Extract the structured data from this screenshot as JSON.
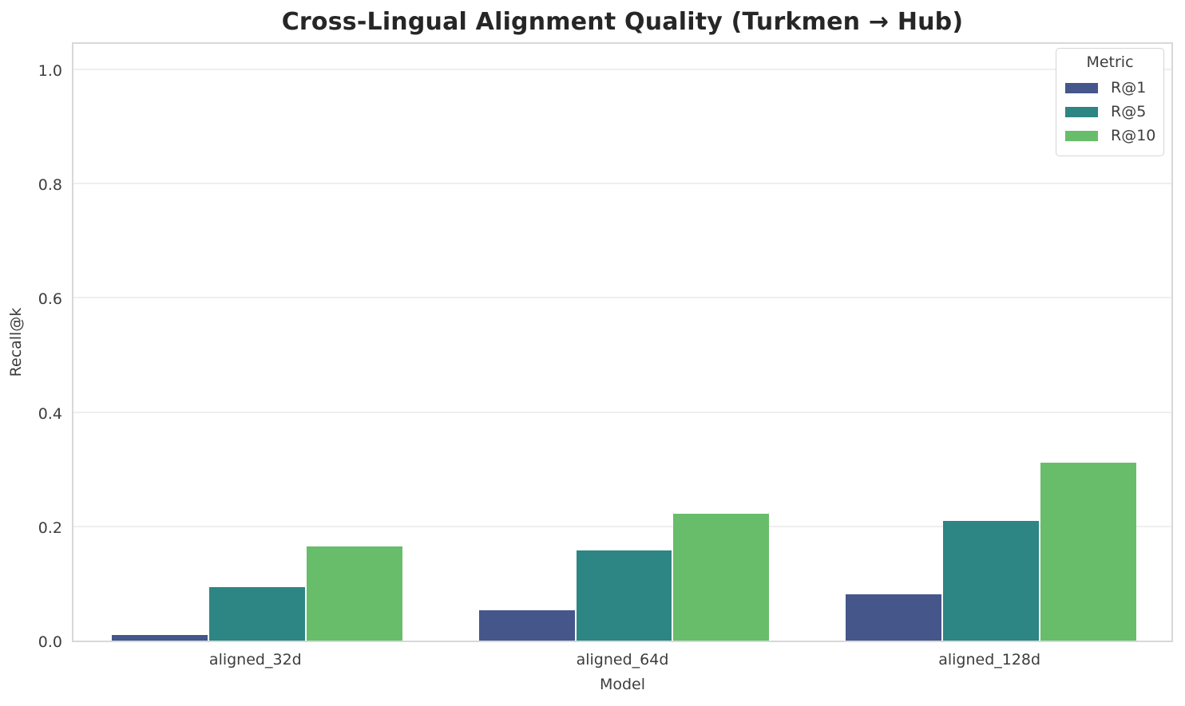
{
  "chart_data": {
    "type": "bar",
    "title": "Cross-Lingual Alignment Quality (Turkmen → Hub)",
    "xlabel": "Model",
    "ylabel": "Recall@k",
    "categories": [
      "aligned_32d",
      "aligned_64d",
      "aligned_128d"
    ],
    "series": [
      {
        "name": "R@1",
        "color": "#45568b",
        "values": [
          0.01,
          0.053,
          0.081
        ]
      },
      {
        "name": "R@5",
        "color": "#2d8584",
        "values": [
          0.094,
          0.158,
          0.209
        ]
      },
      {
        "name": "R@10",
        "color": "#68bd6a",
        "values": [
          0.165,
          0.222,
          0.312
        ]
      }
    ],
    "ylim": [
      0,
      1.05
    ],
    "yticks": [
      0.0,
      0.2,
      0.4,
      0.6,
      0.8,
      1.0
    ],
    "ytick_labels": [
      "0.0",
      "0.2",
      "0.4",
      "0.6",
      "0.8",
      "1.0"
    ],
    "grid": true,
    "legend": {
      "title": "Metric",
      "position": "upper right"
    },
    "colors": {
      "grid": "#efefef",
      "spine": "#d8d8d8",
      "text": "#3d3d3d",
      "title_text": "#262626"
    }
  }
}
